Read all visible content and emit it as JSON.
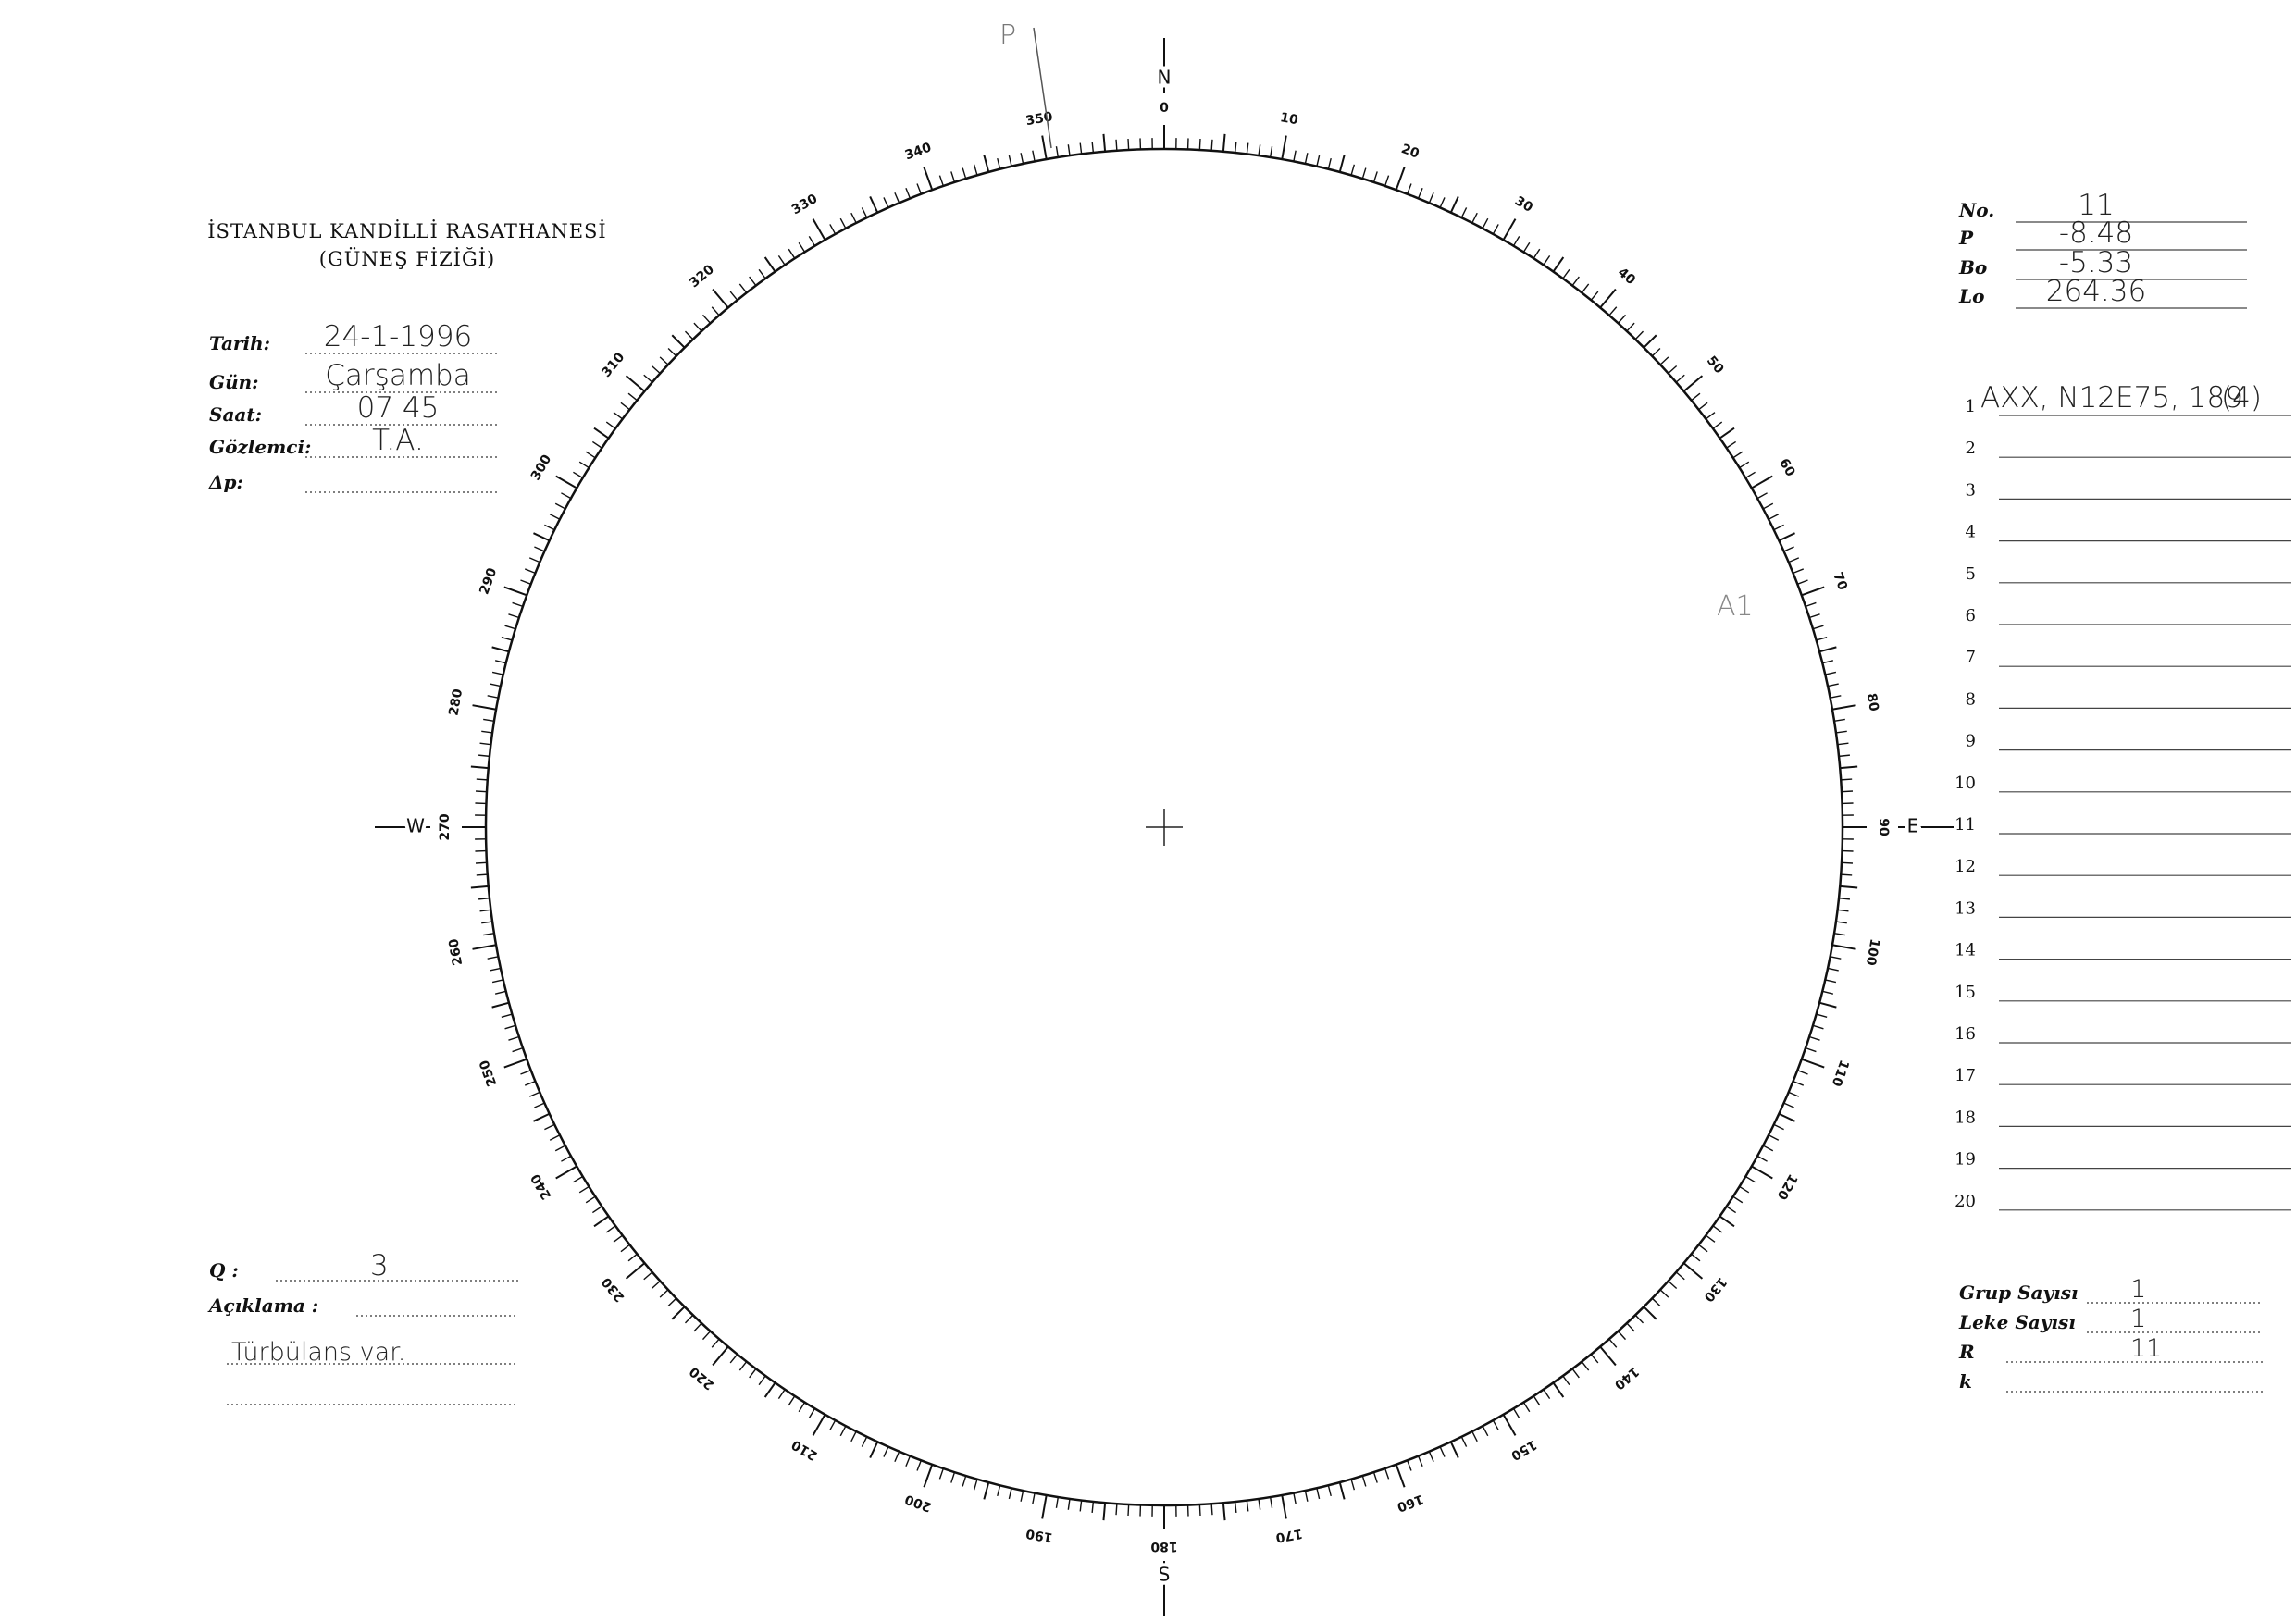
{
  "header": {
    "title": "İSTANBUL KANDİLLİ RASATHANESİ",
    "subtitle": "(GÜNEŞ FİZİĞİ)"
  },
  "observation": [
    {
      "label": "Tarih:",
      "value": "24-1-1996"
    },
    {
      "label": "Gün:",
      "value": "Çarşamba"
    },
    {
      "label": "Saat:",
      "value": "07 45"
    },
    {
      "label": "Gözlemci:",
      "value": "T.A."
    },
    {
      "label": "Δp:"
    }
  ],
  "parameters": [
    {
      "label": "No.",
      "value": "11"
    },
    {
      "label": "P",
      "value": "-8.48"
    },
    {
      "label": "Bo",
      "value": "-5.33"
    },
    {
      "label": "Lo",
      "value": "264.36"
    }
  ],
  "groups": [
    {
      "number": 1,
      "text": "AXX, N12E75, 189",
      "count": "(4)"
    },
    {
      "number": 2
    },
    {
      "number": 3
    },
    {
      "number": 4
    },
    {
      "number": 5
    },
    {
      "number": 6
    },
    {
      "number": 7
    },
    {
      "number": 8
    },
    {
      "number": 9
    },
    {
      "number": 10
    },
    {
      "number": 11
    },
    {
      "number": 12
    },
    {
      "number": 13
    },
    {
      "number": 14
    },
    {
      "number": 15
    },
    {
      "number": 16
    },
    {
      "number": 17
    },
    {
      "number": 18
    },
    {
      "number": 19
    },
    {
      "number": 20
    }
  ],
  "quality": {
    "label": "Q :",
    "value": "3"
  },
  "remarks": {
    "label": "Açıklama :",
    "text": "Türbülans var."
  },
  "summary": [
    {
      "label": "Grup Sayısı",
      "value": "1"
    },
    {
      "label": "Leke Sayısı",
      "value": "1"
    },
    {
      "label": "R",
      "value": "11"
    },
    {
      "label": "k"
    }
  ],
  "dial": {
    "labels": [
      0,
      10,
      20,
      30,
      40,
      50,
      60,
      70,
      80,
      90,
      100,
      110,
      120,
      130,
      140,
      150,
      160,
      170,
      180,
      190,
      200,
      210,
      220,
      230,
      240,
      250,
      260,
      270,
      280,
      290,
      300,
      310,
      320,
      330,
      340,
      350
    ],
    "cardinals": [
      "N",
      "E",
      "S",
      "W"
    ],
    "annotations": [
      "P",
      "A1"
    ]
  }
}
